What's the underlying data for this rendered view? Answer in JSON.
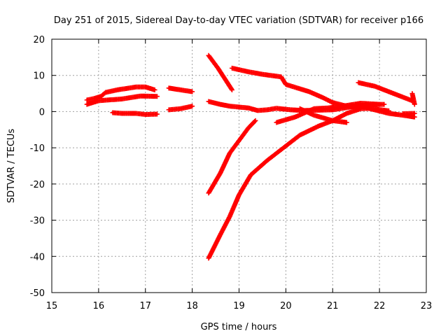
{
  "chart_data": {
    "type": "scatter",
    "title": "Day 251 of 2015, Sidereal Day-to-day VTEC variation (SDTVAR) for receiver p166",
    "xlabel": "GPS time / hours",
    "ylabel": "SDTVAR / TECUs",
    "xlim": [
      15,
      23
    ],
    "ylim": [
      -50,
      20
    ],
    "xticks": [
      "15",
      "16",
      "17",
      "18",
      "19",
      "20",
      "21",
      "22",
      "23"
    ],
    "yticks": [
      "20",
      "10",
      "0",
      "-10",
      "-20",
      "-30",
      "-40",
      "-50"
    ],
    "grid": true,
    "marker": "plus",
    "marker_color": "#ff0000",
    "series": [
      {
        "points": [
          [
            15.75,
            2.0
          ],
          [
            16.0,
            3.0
          ],
          [
            16.5,
            3.5
          ],
          [
            16.9,
            4.3
          ],
          [
            17.25,
            4.2
          ]
        ]
      },
      {
        "points": [
          [
            15.75,
            3.2
          ],
          [
            15.9,
            3.6
          ],
          [
            16.05,
            4.2
          ],
          [
            16.15,
            5.3
          ],
          [
            16.4,
            6.0
          ],
          [
            16.8,
            6.8
          ],
          [
            17.0,
            6.8
          ],
          [
            17.2,
            6.0
          ]
        ]
      },
      {
        "points": [
          [
            16.3,
            -0.3
          ],
          [
            16.5,
            -0.5
          ],
          [
            16.8,
            -0.5
          ],
          [
            17.0,
            -0.8
          ],
          [
            17.25,
            -0.7
          ]
        ]
      },
      {
        "points": [
          [
            17.5,
            6.5
          ],
          [
            17.75,
            6.0
          ],
          [
            18.0,
            5.5
          ]
        ]
      },
      {
        "points": [
          [
            17.5,
            0.5
          ],
          [
            17.75,
            0.8
          ],
          [
            18.0,
            1.5
          ]
        ]
      },
      {
        "points": [
          [
            18.35,
            15.5
          ],
          [
            18.55,
            12.0
          ],
          [
            18.7,
            9.0
          ],
          [
            18.85,
            6.0
          ]
        ]
      },
      {
        "points": [
          [
            18.35,
            2.8
          ],
          [
            18.6,
            2.0
          ],
          [
            18.8,
            1.5
          ],
          [
            19.2,
            1.0
          ],
          [
            19.4,
            0.3
          ],
          [
            19.6,
            0.5
          ],
          [
            19.8,
            0.9
          ],
          [
            20.1,
            0.5
          ],
          [
            20.4,
            0.3
          ],
          [
            20.7,
            0.4
          ],
          [
            21.0,
            0.5
          ],
          [
            21.5,
            1.5
          ],
          [
            22.0,
            2.0
          ],
          [
            22.1,
            2.0
          ]
        ]
      },
      {
        "points": [
          [
            18.85,
            12.0
          ],
          [
            19.2,
            11.0
          ],
          [
            19.5,
            10.3
          ],
          [
            19.9,
            9.6
          ],
          [
            20.0,
            7.5
          ],
          [
            20.5,
            5.5
          ],
          [
            20.8,
            3.8
          ],
          [
            21.0,
            2.5
          ],
          [
            21.3,
            1.5
          ],
          [
            21.6,
            1.0
          ]
        ]
      },
      {
        "points": [
          [
            21.55,
            8.0
          ],
          [
            21.9,
            7.0
          ],
          [
            22.3,
            5.0
          ],
          [
            22.7,
            3.0
          ]
        ]
      },
      {
        "points": [
          [
            22.7,
            5.0
          ],
          [
            22.75,
            2.0
          ]
        ]
      },
      {
        "points": [
          [
            21.5,
            2.0
          ],
          [
            21.8,
            0.8
          ],
          [
            22.2,
            -0.5
          ],
          [
            22.5,
            -1.0
          ],
          [
            22.75,
            -1.5
          ]
        ]
      },
      {
        "points": [
          [
            22.5,
            -0.6
          ],
          [
            22.75,
            -0.5
          ]
        ]
      },
      {
        "points": [
          [
            18.35,
            -22.5
          ],
          [
            18.6,
            -17.0
          ],
          [
            18.8,
            -11.5
          ],
          [
            19.0,
            -8.0
          ],
          [
            19.2,
            -4.5
          ],
          [
            19.35,
            -2.5
          ]
        ]
      },
      {
        "points": [
          [
            18.35,
            -40.5
          ],
          [
            18.6,
            -34.0
          ],
          [
            18.8,
            -29.0
          ],
          [
            19.0,
            -23.0
          ],
          [
            19.25,
            -17.5
          ],
          [
            19.6,
            -13.5
          ],
          [
            20.0,
            -9.5
          ],
          [
            20.3,
            -6.5
          ],
          [
            20.7,
            -4.0
          ],
          [
            21.0,
            -2.5
          ],
          [
            21.3,
            -0.5
          ],
          [
            21.6,
            0.8
          ],
          [
            21.8,
            0.9
          ],
          [
            22.2,
            0.2
          ]
        ]
      },
      {
        "points": [
          [
            19.8,
            -3.0
          ],
          [
            20.2,
            -1.5
          ],
          [
            20.6,
            0.8
          ],
          [
            20.9,
            1.0
          ],
          [
            21.2,
            1.5
          ],
          [
            21.6,
            2.3
          ],
          [
            22.0,
            2.0
          ]
        ]
      },
      {
        "points": [
          [
            20.3,
            0.8
          ],
          [
            20.6,
            -1.0
          ],
          [
            21.0,
            -2.5
          ],
          [
            21.3,
            -3.0
          ]
        ]
      }
    ]
  }
}
